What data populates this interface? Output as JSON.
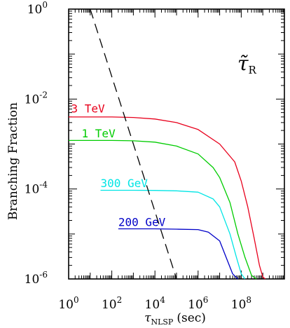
{
  "chart_data": {
    "type": "line",
    "xscale": "log",
    "yscale": "log",
    "xlim": [
      1,
      10000000000
    ],
    "ylim": [
      1e-06,
      1
    ],
    "grid": false,
    "xlabel": "τ_NLSP (sec)",
    "xlabel_main": "τ",
    "xlabel_sub": "NLSP",
    "xlabel_unit": "(sec)",
    "ylabel": "Branching Fraction",
    "annotation": "τ̃_R",
    "annotation_main": "τ̃",
    "annotation_sub": "R",
    "x_ticks": [
      {
        "base": "10",
        "exp": "0",
        "value": 1
      },
      {
        "base": "10",
        "exp": "2",
        "value": 100
      },
      {
        "base": "10",
        "exp": "4",
        "value": 10000
      },
      {
        "base": "10",
        "exp": "6",
        "value": 1000000
      },
      {
        "base": "10",
        "exp": "8",
        "value": 100000000
      }
    ],
    "y_ticks": [
      {
        "base": "10",
        "exp": "0",
        "value": 1
      },
      {
        "base": "10",
        "exp": "-2",
        "value": 0.01
      },
      {
        "base": "10",
        "exp": "-4",
        "value": 0.0001
      },
      {
        "base": "10",
        "exp": "-6",
        "value": 1e-06
      }
    ],
    "series": [
      {
        "name": "3 TeV",
        "color": "#e8001c",
        "label_at": [
          1.3,
          0.005
        ],
        "x": [
          1,
          10,
          100,
          1000,
          10000,
          100000,
          1000000,
          10000000,
          50000000,
          100000000,
          200000000,
          400000000,
          700000000,
          1000000000,
          1300000000
        ],
        "y": [
          0.004,
          0.004,
          0.004,
          0.0039,
          0.0036,
          0.003,
          0.0021,
          0.001,
          0.0004,
          0.00015,
          4e-05,
          8e-06,
          2e-06,
          1.1e-06,
          1e-06
        ]
      },
      {
        "name": "1 TeV",
        "color": "#00cc00",
        "label_at": [
          4,
          0.0014
        ],
        "x": [
          1,
          10,
          100,
          1000,
          10000,
          100000,
          1000000,
          5000000,
          10000000,
          30000000,
          70000000,
          150000000,
          300000000,
          500000000
        ],
        "y": [
          0.0012,
          0.0012,
          0.0012,
          0.00118,
          0.0011,
          0.0009,
          0.0006,
          0.0003,
          0.00018,
          5e-05,
          1e-05,
          3e-06,
          1.2e-06,
          1e-06
        ]
      },
      {
        "name": "300 GeV",
        "color": "#00e5e5",
        "label_at": [
          30,
          0.00011
        ],
        "x": [
          30,
          100,
          1000,
          10000,
          100000,
          1000000,
          5000000,
          10000000,
          30000000,
          60000000,
          100000000,
          150000000
        ],
        "y": [
          9.35e-05,
          9.35e-05,
          9.35e-05,
          9.3e-05,
          9.1e-05,
          8.5e-05,
          6e-05,
          4e-05,
          1e-05,
          3e-06,
          1.3e-06,
          1e-06
        ]
      },
      {
        "name": "200 GeV",
        "color": "#0000c8",
        "label_at": [
          200,
          1.5e-05
        ],
        "x": [
          200,
          1000,
          10000,
          100000,
          1000000,
          3000000,
          10000000,
          20000000,
          40000000,
          70000000
        ],
        "y": [
          1.3e-05,
          1.3e-05,
          1.3e-05,
          1.28e-05,
          1.25e-05,
          1.1e-05,
          7e-06,
          3e-06,
          1.3e-06,
          1e-06
        ]
      },
      {
        "name": "",
        "style": "dashed",
        "color": "#000000",
        "x": [
          10,
          100000
        ],
        "y": [
          1,
          1e-06
        ]
      }
    ]
  }
}
